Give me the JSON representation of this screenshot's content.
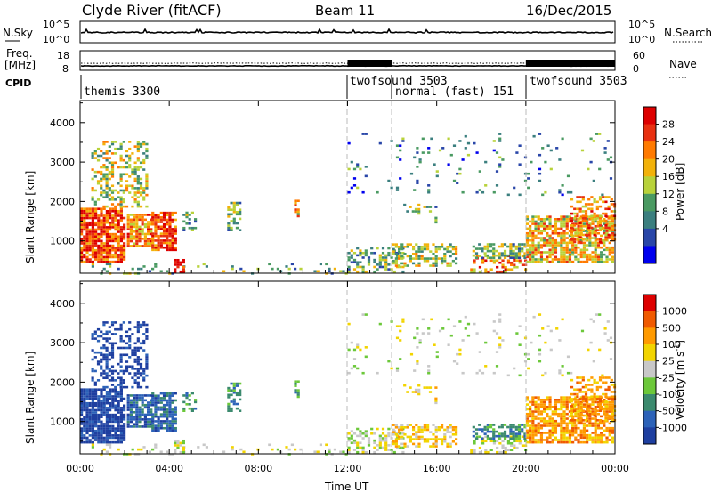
{
  "header": {
    "radar": "Clyde River (fitACF)",
    "beam": "Beam 11",
    "date": "16/Dec/2015"
  },
  "panels": {
    "noise": {
      "left_label": "N.Sky",
      "right_label": "N.Search",
      "left_ticks": [
        "10^5",
        "10^0"
      ],
      "right_ticks": [
        "10^5",
        "10^0"
      ]
    },
    "freq": {
      "left_label_line1": "Freq.",
      "left_label_line2": "[MHz]",
      "right_label": "Nave",
      "left_ticks": [
        "18",
        "8"
      ],
      "right_ticks": [
        "60",
        "0"
      ]
    },
    "cpid": {
      "label": "CPID",
      "modes": [
        {
          "name": "themis 3300",
          "start": 0
        },
        {
          "name": "twofsound 3503",
          "start": 12
        },
        {
          "name": "normal (fast) 151",
          "start": 14
        },
        {
          "name": "twofsound 3503",
          "start": 20
        }
      ]
    }
  },
  "chart_data": {
    "type": "heatmap",
    "xlabel": "Time UT",
    "x_tick_labels": [
      "00:00",
      "04:00",
      "08:00",
      "12:00",
      "16:00",
      "20:00",
      "00:00"
    ],
    "x_hours": [
      0,
      4,
      8,
      12,
      16,
      20,
      24
    ],
    "mode_boundaries_hours": [
      12,
      14,
      20
    ],
    "ylabel": "Slant Range [km]",
    "y_ticks": [
      1000,
      2000,
      3000,
      4000
    ],
    "ylim": [
      180,
      4560
    ],
    "power": {
      "colorbar_label": "Power [dB]",
      "colorbar_ticks": [
        "28",
        "24",
        "20",
        "16",
        "12",
        "8",
        "4"
      ],
      "scale": [
        "#0000ee",
        "#2946a8",
        "#3b7f7f",
        "#4a9a62",
        "#b8d23a",
        "#f2b20a",
        "#ff7a00",
        "#e83010",
        "#dd0000"
      ]
    },
    "velocity": {
      "colorbar_label": "Velocity [m s^-1]",
      "colorbar_ticks": [
        "1000",
        "500",
        "100",
        "25",
        "-25",
        "-100",
        "-500",
        "-1000"
      ],
      "scale": [
        "#1e3fa0",
        "#2c62b8",
        "#3b8a6e",
        "#6cc83a",
        "#c8c8c8",
        "#f2d400",
        "#ff9a00",
        "#f05a00",
        "#dd0000"
      ]
    }
  }
}
